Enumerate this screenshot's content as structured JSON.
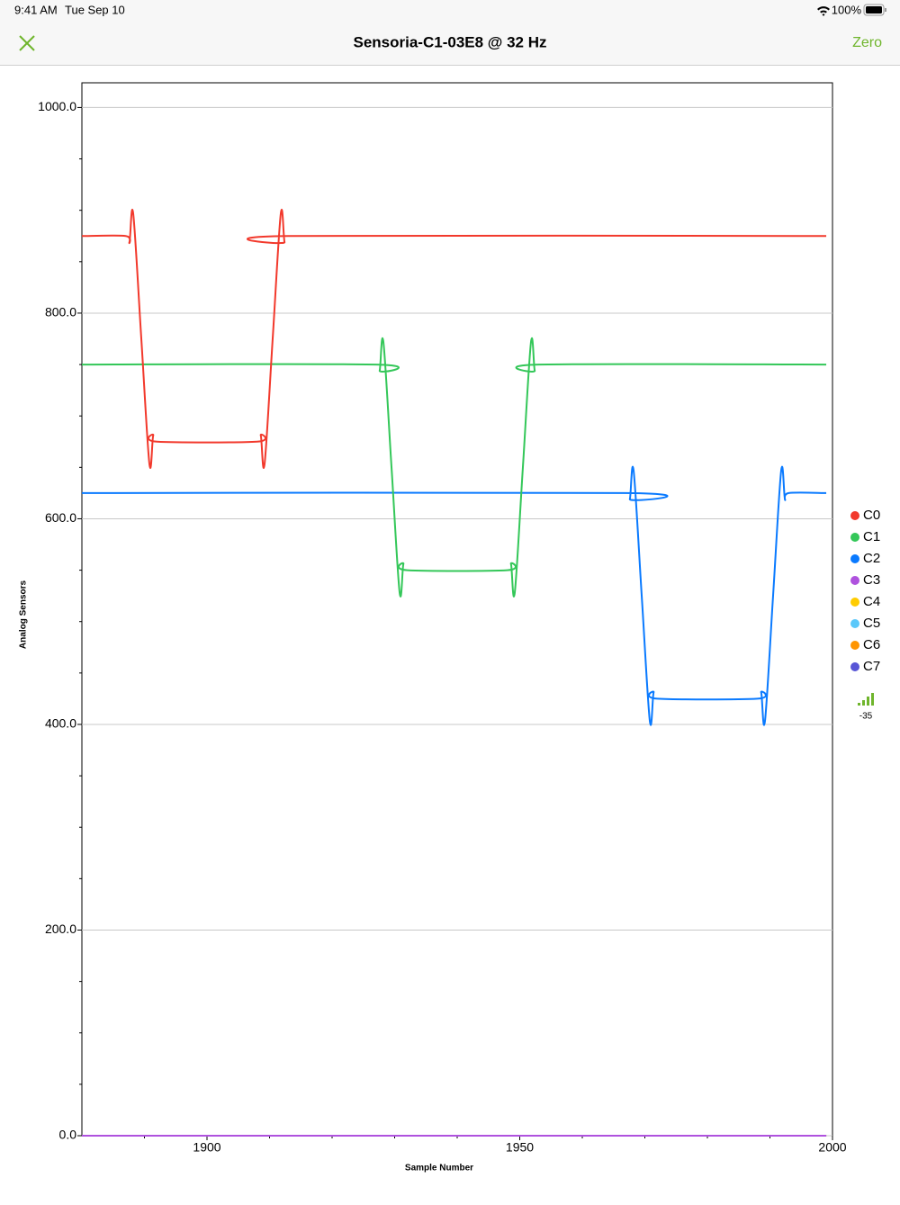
{
  "status_bar": {
    "time": "9:41 AM",
    "date": "Tue Sep 10",
    "battery": "100%"
  },
  "nav": {
    "title": "Sensoria-C1-03E8 @ 32 Hz",
    "action": "Zero"
  },
  "signal": {
    "rssi": -35
  },
  "chart_data": {
    "type": "line",
    "x_label": "Sample Number",
    "y_label": "Analog Sensors",
    "xlim": [
      1880,
      2000
    ],
    "ylim": [
      0,
      1024
    ],
    "xticks": [
      1900,
      1950,
      2000
    ],
    "x_minor_ticks": [
      1890,
      1910,
      1920,
      1930,
      1940,
      1960,
      1970,
      1980,
      1990
    ],
    "yticks": [
      {
        "value": 0,
        "label": "0.0"
      },
      {
        "value": 200,
        "label": "200.0"
      },
      {
        "value": 400,
        "label": "400.0"
      },
      {
        "value": 600,
        "label": "600.0"
      },
      {
        "value": 800,
        "label": "800.0"
      },
      {
        "value": 1000,
        "label": "1000.0"
      }
    ],
    "y_minor_ticks": [
      50,
      100,
      150,
      250,
      300,
      350,
      450,
      500,
      550,
      650,
      700,
      750,
      850,
      900,
      950
    ],
    "grid": true,
    "legend": "right",
    "series": [
      {
        "name": "C0",
        "color": "#f2392c",
        "x": [
          1880,
          1887,
          1887.6,
          1888.2,
          1889.5,
          1890.8,
          1891.4,
          1892,
          1908,
          1908.6,
          1909.2,
          1910.5,
          1911.8,
          1912.4,
          1913,
          1999
        ],
        "values": [
          875,
          875,
          869,
          897,
          775,
          653,
          681,
          675,
          675,
          681,
          653,
          775,
          897,
          869,
          875,
          875
        ]
      },
      {
        "name": "C1",
        "color": "#34c759",
        "x": [
          1880,
          1927,
          1927.6,
          1928.2,
          1929.5,
          1930.8,
          1931.4,
          1932,
          1948,
          1948.6,
          1949.2,
          1950.5,
          1951.8,
          1952.4,
          1953,
          1999
        ],
        "values": [
          750,
          750,
          744,
          772,
          650,
          528,
          556,
          550,
          550,
          556,
          528,
          650,
          772,
          744,
          750,
          750
        ]
      },
      {
        "name": "C2",
        "color": "#0a7aff",
        "x": [
          1880,
          1967,
          1967.6,
          1968.2,
          1969.5,
          1970.8,
          1971.4,
          1972,
          1988,
          1988.6,
          1989.2,
          1990.5,
          1991.8,
          1992.4,
          1993,
          1999
        ],
        "values": [
          625,
          625,
          619,
          647,
          525,
          403,
          431,
          425,
          425,
          431,
          403,
          525,
          647,
          619,
          625,
          625
        ]
      },
      {
        "name": "C3",
        "color": "#af52de",
        "x": [
          1880,
          1999
        ],
        "values": [
          0,
          0
        ]
      },
      {
        "name": "C4",
        "color": "#ffcc00",
        "x": [
          1880,
          1999
        ],
        "values": [
          0,
          0
        ]
      },
      {
        "name": "C5",
        "color": "#5ac8fa",
        "x": [
          1880,
          1999
        ],
        "values": [
          0,
          0
        ]
      },
      {
        "name": "C6",
        "color": "#ff9500",
        "x": [
          1880,
          1999
        ],
        "values": [
          0,
          0
        ]
      },
      {
        "name": "C7",
        "color": "#5856d6",
        "x": [
          1880,
          1999
        ],
        "values": [
          0,
          0
        ]
      }
    ]
  }
}
